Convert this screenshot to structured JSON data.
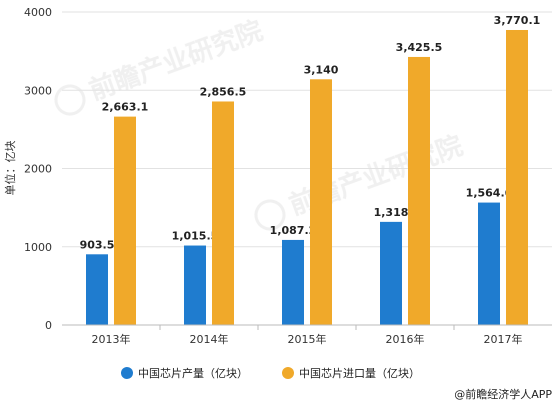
{
  "chart_data": {
    "type": "bar",
    "ylabel": "单位：亿块",
    "ylim": [
      0,
      4000
    ],
    "yticks": [
      0,
      1000,
      2000,
      3000,
      4000
    ],
    "grid": true,
    "legend_position": "bottom",
    "categories": [
      "2013年",
      "2014年",
      "2015年",
      "2016年",
      "2017年"
    ],
    "series": [
      {
        "name": "中国芯片产量（亿块）",
        "color": "#1f7ccf",
        "values": [
          903.5,
          1015.5,
          1087.2,
          1318,
          1564.6
        ],
        "labels": [
          "903.5",
          "1,015.5",
          "1,087.2",
          "1,318",
          "1,564.6"
        ]
      },
      {
        "name": "中国芯片进口量（亿块）",
        "color": "#f0a92a",
        "values": [
          2663.1,
          2856.5,
          3140,
          3425.5,
          3770.1
        ],
        "labels": [
          "2,663.1",
          "2,856.5",
          "3,140",
          "3,425.5",
          "3,770.1"
        ]
      }
    ]
  },
  "source": "@前瞻经济学人APP",
  "watermark": "前瞻产业研究院"
}
